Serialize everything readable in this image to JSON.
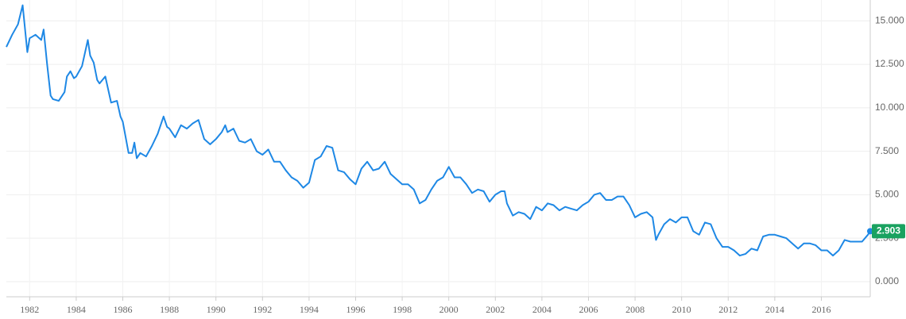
{
  "chart_data": {
    "type": "line",
    "series": [
      {
        "color": "#1e88e5",
        "x": [
          1981.0,
          1981.25,
          1981.5,
          1981.7,
          1981.9,
          1982.0,
          1982.25,
          1982.5,
          1982.6,
          1982.75,
          1982.9,
          1983.0,
          1983.25,
          1983.5,
          1983.6,
          1983.75,
          1983.9,
          1984.0,
          1984.25,
          1984.5,
          1984.6,
          1984.75,
          1984.9,
          1985.0,
          1985.25,
          1985.5,
          1985.75,
          1985.9,
          1986.0,
          1986.25,
          1986.4,
          1986.5,
          1986.6,
          1986.75,
          1987.0,
          1987.25,
          1987.5,
          1987.75,
          1987.9,
          1988.0,
          1988.25,
          1988.5,
          1988.75,
          1989.0,
          1989.25,
          1989.5,
          1989.75,
          1990.0,
          1990.25,
          1990.4,
          1990.5,
          1990.75,
          1991.0,
          1991.25,
          1991.5,
          1991.75,
          1992.0,
          1992.25,
          1992.5,
          1992.75,
          1993.0,
          1993.25,
          1993.5,
          1993.75,
          1994.0,
          1994.25,
          1994.5,
          1994.75,
          1995.0,
          1995.25,
          1995.5,
          1995.75,
          1996.0,
          1996.25,
          1996.5,
          1996.75,
          1997.0,
          1997.25,
          1997.5,
          1997.75,
          1998.0,
          1998.25,
          1998.5,
          1998.75,
          1999.0,
          1999.25,
          1999.5,
          1999.75,
          2000.0,
          2000.25,
          2000.5,
          2000.75,
          2001.0,
          2001.25,
          2001.5,
          2001.75,
          2002.0,
          2002.25,
          2002.4,
          2002.5,
          2002.75,
          2003.0,
          2003.25,
          2003.5,
          2003.75,
          2004.0,
          2004.25,
          2004.5,
          2004.75,
          2005.0,
          2005.25,
          2005.5,
          2005.75,
          2006.0,
          2006.25,
          2006.5,
          2006.75,
          2007.0,
          2007.25,
          2007.5,
          2007.75,
          2008.0,
          2008.25,
          2008.5,
          2008.75,
          2008.9,
          2009.0,
          2009.25,
          2009.5,
          2009.75,
          2010.0,
          2010.25,
          2010.5,
          2010.75,
          2011.0,
          2011.25,
          2011.5,
          2011.75,
          2012.0,
          2012.25,
          2012.5,
          2012.75,
          2013.0,
          2013.25,
          2013.5,
          2013.75,
          2014.0,
          2014.25,
          2014.5,
          2014.75,
          2015.0,
          2015.25,
          2015.5,
          2015.75,
          2016.0,
          2016.25,
          2016.5,
          2016.75,
          2017.0,
          2017.25,
          2017.5,
          2017.75,
          2018.0,
          2018.1
        ],
        "values": [
          13.5,
          14.2,
          14.8,
          15.9,
          13.2,
          14.0,
          14.2,
          13.9,
          14.5,
          12.5,
          10.7,
          10.5,
          10.4,
          10.9,
          11.8,
          12.1,
          11.7,
          11.8,
          12.4,
          13.9,
          13.0,
          12.6,
          11.6,
          11.4,
          11.8,
          10.3,
          10.4,
          9.5,
          9.2,
          7.4,
          7.4,
          8.0,
          7.1,
          7.4,
          7.2,
          7.8,
          8.5,
          9.5,
          8.9,
          8.8,
          8.3,
          9.0,
          8.8,
          9.1,
          9.3,
          8.2,
          7.9,
          8.2,
          8.6,
          9.0,
          8.6,
          8.8,
          8.1,
          8.0,
          8.2,
          7.5,
          7.3,
          7.6,
          6.9,
          6.9,
          6.4,
          6.0,
          5.8,
          5.4,
          5.7,
          7.0,
          7.2,
          7.8,
          7.7,
          6.4,
          6.3,
          5.9,
          5.6,
          6.5,
          6.9,
          6.4,
          6.5,
          6.9,
          6.2,
          5.9,
          5.6,
          5.6,
          5.3,
          4.5,
          4.7,
          5.3,
          5.8,
          6.0,
          6.6,
          6.0,
          6.0,
          5.6,
          5.1,
          5.3,
          5.2,
          4.6,
          5.0,
          5.2,
          5.2,
          4.5,
          3.8,
          4.0,
          3.9,
          3.6,
          4.3,
          4.1,
          4.5,
          4.4,
          4.1,
          4.3,
          4.2,
          4.1,
          4.4,
          4.6,
          5.0,
          5.1,
          4.7,
          4.7,
          4.9,
          4.9,
          4.4,
          3.7,
          3.9,
          4.0,
          3.7,
          2.4,
          2.7,
          3.3,
          3.6,
          3.4,
          3.7,
          3.7,
          2.9,
          2.7,
          3.4,
          3.3,
          2.5,
          2.0,
          2.0,
          1.8,
          1.5,
          1.6,
          1.9,
          1.8,
          2.6,
          2.7,
          2.7,
          2.6,
          2.5,
          2.2,
          1.9,
          2.2,
          2.2,
          2.1,
          1.8,
          1.8,
          1.5,
          1.8,
          2.4,
          2.3,
          2.3,
          2.3,
          2.7,
          2.903
        ]
      }
    ],
    "label_color": "#1aa260",
    "xlim": [
      1981.0,
      2018.1
    ],
    "xticks": [
      1982,
      1984,
      1986,
      1988,
      1990,
      1992,
      1994,
      1996,
      1998,
      2000,
      2002,
      2004,
      2006,
      2008,
      2010,
      2012,
      2014,
      2016
    ],
    "ylim": [
      -0.87,
      16.2
    ],
    "yticks": [
      {
        "value": 0,
        "label": "0.000"
      },
      {
        "value": 2.5,
        "label": "2.500"
      },
      {
        "value": 5,
        "label": "5.000"
      },
      {
        "value": 7.5,
        "label": "7.500"
      },
      {
        "value": 10,
        "label": "10.000"
      },
      {
        "value": 12.5,
        "label": "12.500"
      },
      {
        "value": 15,
        "label": "15.000"
      }
    ],
    "grid": true
  }
}
